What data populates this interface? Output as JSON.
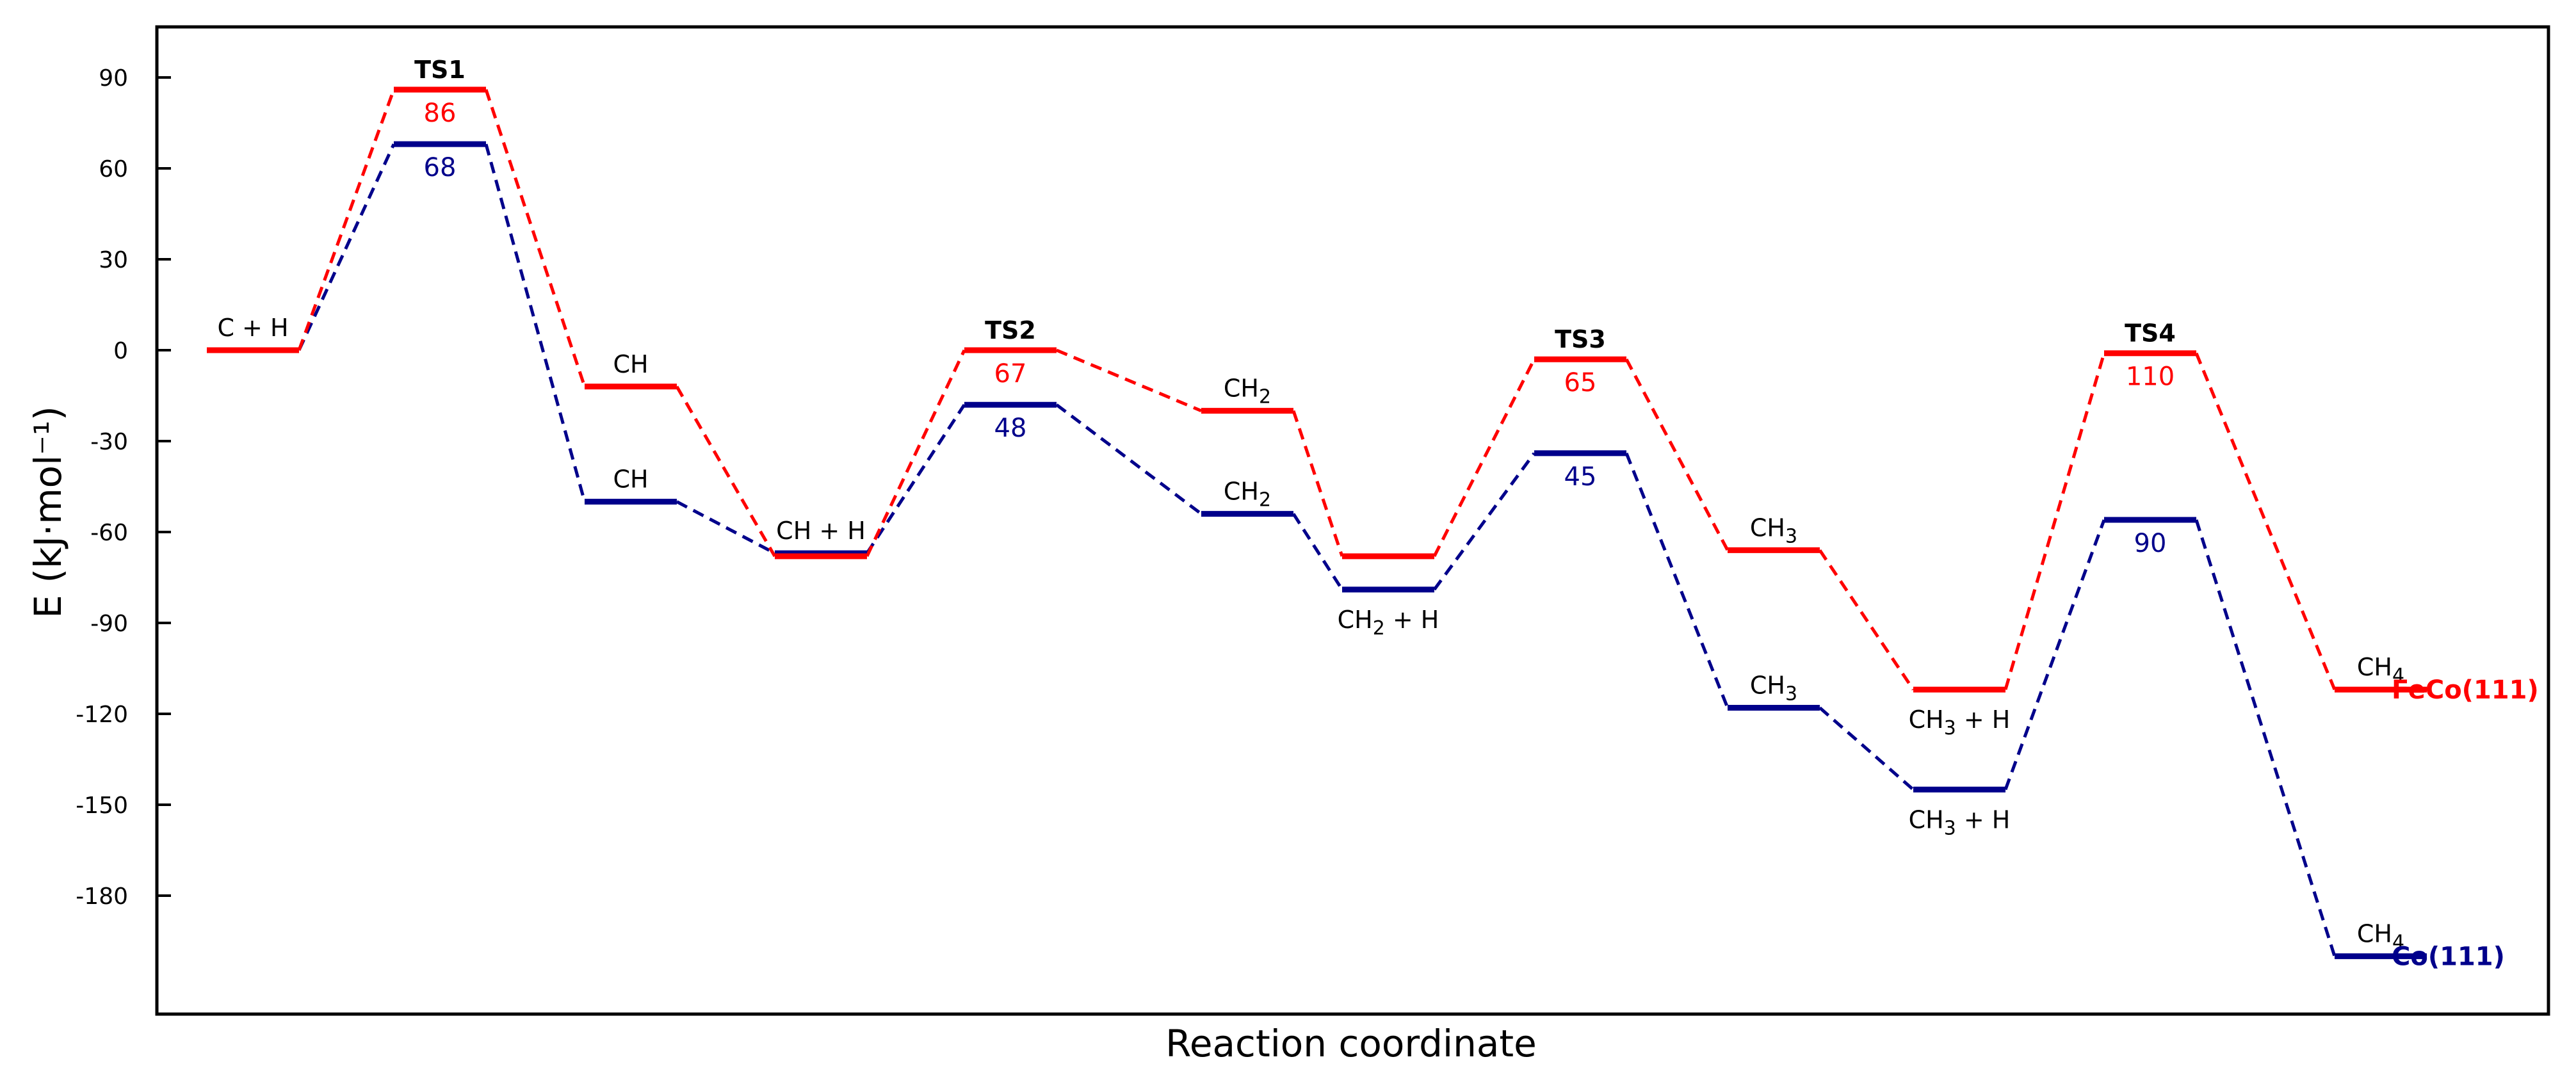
{
  "chart_data": {
    "type": "line",
    "title": "",
    "xlabel": "Reaction coordinate",
    "ylabel": "E (kJ·mol⁻¹)",
    "ylim": [
      -220,
      100
    ],
    "yticks": [
      90,
      60,
      30,
      0,
      -30,
      -60,
      -90,
      -120,
      -150,
      -180
    ],
    "grid": false,
    "stages": [
      {
        "feco": "C + H",
        "co": "C + H"
      },
      {
        "feco": "TS1",
        "co": "TS1",
        "ts": true
      },
      {
        "feco": "CH",
        "co": "CH"
      },
      {
        "feco": "CH + H",
        "co": "CH + H"
      },
      {
        "feco": "TS2",
        "co": "TS2",
        "ts": true
      },
      {
        "feco": "CH2",
        "co": "CH2"
      },
      {
        "feco": "CH2 + H",
        "co": "CH2 + H"
      },
      {
        "feco": "TS3",
        "co": "TS3",
        "ts": true
      },
      {
        "feco": "CH3",
        "co": "CH3"
      },
      {
        "feco": "CH3 + H",
        "co": "CH3 + H"
      },
      {
        "feco": "TS4",
        "co": "TS4",
        "ts": true
      },
      {
        "feco": "CH4",
        "co": "CH4"
      }
    ],
    "series": [
      {
        "name": "FeCo(111)",
        "color": "#ff0000",
        "values": [
          0,
          86,
          -12,
          -68,
          0,
          -20,
          -68,
          -3,
          -66,
          -112,
          -1,
          -112
        ],
        "barriers": [
          "",
          "86",
          "",
          "",
          "67",
          "",
          "",
          "65",
          "",
          "",
          "110",
          ""
        ]
      },
      {
        "name": "Co(111)",
        "color": "#00008b",
        "values": [
          0,
          68,
          -50,
          -67,
          -18,
          -54,
          -79,
          -34,
          -118,
          -145,
          -56,
          -200
        ],
        "barriers": [
          "",
          "68",
          "",
          "",
          "48",
          "",
          "",
          "45",
          "",
          "",
          "90",
          ""
        ]
      }
    ],
    "annotations": {
      "C + H": "C + H",
      "TS1": "TS1",
      "TS2": "TS2",
      "TS3": "TS3",
      "TS4": "TS4",
      "CH_feco": "CH",
      "CH_co": "CH",
      "CH + H": "CH + H",
      "CH2_feco": "CH2",
      "CH2_co": "CH2",
      "CH2 + H": "CH2 + H",
      "CH3_feco": "CH3",
      "CH3_co": "CH3",
      "CH3 + H_feco": "CH3 + H",
      "CH3 + H_co": "CH3 + H",
      "CH4_feco": "CH4",
      "CH4_co": "CH4"
    }
  }
}
